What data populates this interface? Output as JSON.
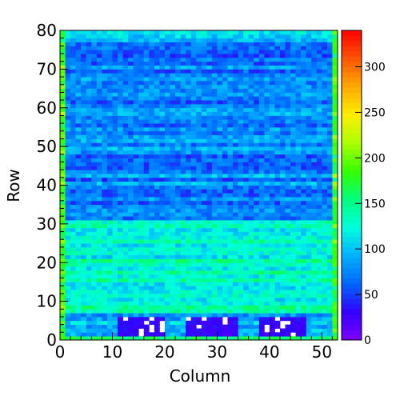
{
  "chart_data": {
    "type": "heatmap",
    "xlabel": "Column",
    "ylabel": "Row",
    "xlim": [
      0,
      53
    ],
    "ylim": [
      0,
      80
    ],
    "zlim": [
      0,
      340
    ],
    "x_ticks": [
      "0",
      "10",
      "20",
      "30",
      "40",
      "50"
    ],
    "y_ticks": [
      "0",
      "10",
      "20",
      "30",
      "40",
      "50",
      "60",
      "70",
      "80"
    ],
    "z_ticks": [
      "0",
      "50",
      "100",
      "150",
      "200",
      "250",
      "300"
    ],
    "colormap": [
      "#7f00ff",
      "#3300ff",
      "#0066ff",
      "#00b0ff",
      "#00ffdd",
      "#00ff7f",
      "#33ff00",
      "#aaff00",
      "#ffee00",
      "#ffaa00",
      "#ff5500",
      "#ff0000"
    ],
    "bands": [
      {
        "rows": [
          0,
          1
        ],
        "level": 150,
        "description_hidden": true
      },
      {
        "rows": [
          1,
          7
        ],
        "level": 95
      },
      {
        "rows": [
          7,
          31
        ],
        "level": 130
      },
      {
        "rows": [
          31,
          77
        ],
        "level": 75
      },
      {
        "rows": [
          77,
          80
        ],
        "level": 115
      }
    ],
    "empty_regions": [
      {
        "x": [
          11,
          20
        ],
        "y": [
          1,
          6
        ],
        "level": 30
      },
      {
        "x": [
          24,
          34
        ],
        "y": [
          1,
          6
        ],
        "level": 30
      },
      {
        "x": [
          38,
          47
        ],
        "y": [
          1,
          6
        ],
        "level": 30
      }
    ],
    "edge_columns": [
      {
        "x": [
          0,
          1
        ],
        "level": 190
      },
      {
        "x": [
          52,
          53
        ],
        "level": 185
      }
    ]
  }
}
